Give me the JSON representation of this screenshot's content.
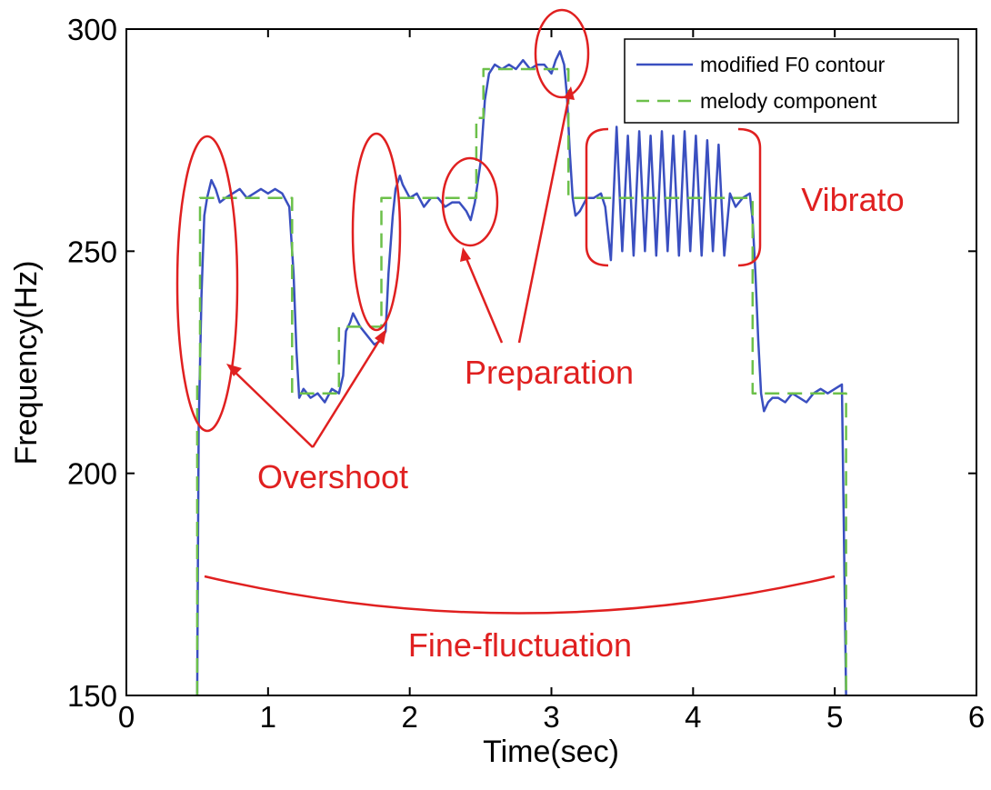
{
  "chart_data": {
    "type": "line",
    "xlabel": "Time(sec)",
    "ylabel": "Frequency(Hz)",
    "xlim": [
      0,
      6
    ],
    "ylim": [
      150,
      300
    ],
    "xticks": [
      "0",
      "1",
      "2",
      "3",
      "4",
      "5",
      "6"
    ],
    "yticks": [
      "150",
      "200",
      "250",
      "300"
    ],
    "grid": false,
    "legend_position": "top-right",
    "annotation_color": "#e02020",
    "series": [
      {
        "name": "modified F0 contour",
        "color": "#3a4fc0",
        "style": "solid",
        "x": [
          0.5,
          0.51,
          0.53,
          0.55,
          0.57,
          0.6,
          0.63,
          0.66,
          0.7,
          0.75,
          0.8,
          0.85,
          0.9,
          0.95,
          1.0,
          1.05,
          1.1,
          1.15,
          1.18,
          1.2,
          1.22,
          1.25,
          1.3,
          1.35,
          1.4,
          1.45,
          1.5,
          1.53,
          1.55,
          1.58,
          1.6,
          1.65,
          1.7,
          1.75,
          1.8,
          1.83,
          1.85,
          1.88,
          1.9,
          1.93,
          1.95,
          2.0,
          2.05,
          2.1,
          2.15,
          2.2,
          2.25,
          2.3,
          2.35,
          2.4,
          2.43,
          2.46,
          2.5,
          2.53,
          2.56,
          2.6,
          2.65,
          2.7,
          2.75,
          2.8,
          2.85,
          2.9,
          2.95,
          3.0,
          3.03,
          3.06,
          3.09,
          3.11,
          3.13,
          3.15,
          3.17,
          3.2,
          3.25,
          3.3,
          3.35,
          3.38,
          3.42,
          3.46,
          3.5,
          3.54,
          3.58,
          3.62,
          3.66,
          3.7,
          3.74,
          3.78,
          3.82,
          3.86,
          3.9,
          3.94,
          3.98,
          4.02,
          4.06,
          4.1,
          4.14,
          4.18,
          4.22,
          4.26,
          4.3,
          4.35,
          4.4,
          4.42,
          4.44,
          4.46,
          4.48,
          4.5,
          4.53,
          4.56,
          4.6,
          4.65,
          4.7,
          4.75,
          4.8,
          4.85,
          4.9,
          4.95,
          5.0,
          5.05,
          5.08
        ],
        "y": [
          150,
          210,
          240,
          258,
          262,
          266,
          264,
          261,
          262,
          263,
          264,
          262,
          263,
          264,
          263,
          264,
          263,
          260,
          245,
          228,
          217,
          219,
          217,
          218,
          216,
          219,
          218,
          222,
          232,
          234,
          236,
          233,
          231,
          229,
          230,
          232,
          245,
          258,
          264,
          267,
          265,
          262,
          263,
          260,
          262,
          262,
          260,
          261,
          261,
          259,
          257,
          261,
          270,
          284,
          290,
          292,
          291,
          292,
          291,
          293,
          291,
          292,
          292,
          290,
          293,
          295,
          292,
          285,
          272,
          262,
          258,
          259,
          262,
          262,
          263,
          260,
          248,
          278,
          250,
          276,
          249,
          277,
          250,
          276,
          249,
          277,
          250,
          276,
          249,
          277,
          250,
          276,
          249,
          275,
          250,
          274,
          249,
          263,
          260,
          262,
          263,
          257,
          245,
          230,
          218,
          214,
          216,
          217,
          217,
          216,
          218,
          217,
          216,
          218,
          219,
          218,
          219,
          220,
          150
        ]
      },
      {
        "name": "melody component",
        "color": "#6cc04a",
        "style": "dashed",
        "x": [
          0.5,
          0.5,
          0.52,
          0.52,
          1.17,
          1.17,
          1.5,
          1.5,
          1.8,
          1.8,
          2.47,
          2.47,
          2.52,
          2.52,
          3.12,
          3.12,
          3.3,
          3.3,
          4.42,
          4.42,
          5.08,
          5.08
        ],
        "y": [
          150,
          220,
          220,
          262,
          262,
          218,
          218,
          233,
          233,
          262,
          262,
          280,
          280,
          291,
          291,
          262,
          262,
          262,
          262,
          218,
          218,
          150
        ]
      }
    ],
    "annotations": {
      "overshoot": "Overshoot",
      "preparation": "Preparation",
      "vibrato": "Vibrato",
      "fine_fluctuation": "Fine-fluctuation"
    }
  }
}
